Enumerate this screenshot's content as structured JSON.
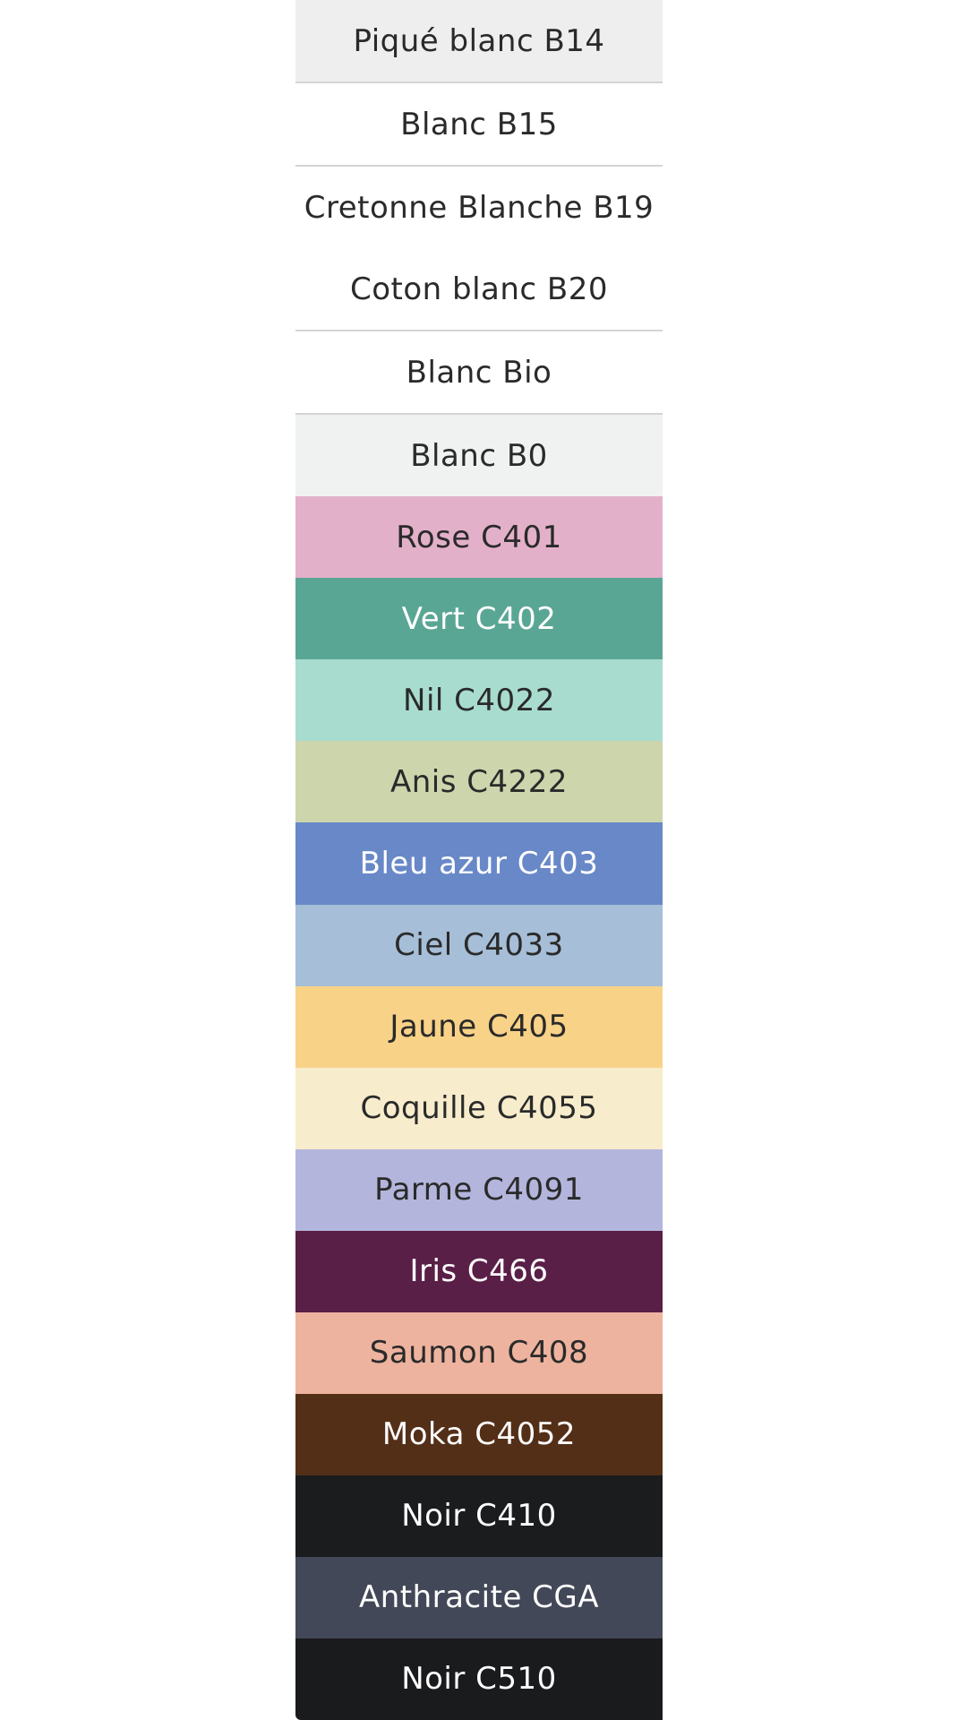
{
  "swatches": [
    {
      "label": "Piqué blanc B14",
      "color": "#eeeeee",
      "text_color": "#2a2a2a",
      "separator": true
    },
    {
      "label": "Blanc B15",
      "color": "#ffffff",
      "text_color": "#2a2a2a",
      "separator": true
    },
    {
      "label": "Cretonne Blanche B19",
      "color": "#ffffff",
      "text_color": "#2a2a2a",
      "separator": false
    },
    {
      "label": "Coton blanc B20",
      "color": "#ffffff",
      "text_color": "#2a2a2a",
      "separator": true
    },
    {
      "label": "Blanc Bio",
      "color": "#ffffff",
      "text_color": "#2a2a2a",
      "separator": true
    },
    {
      "label": "Blanc B0",
      "color": "#eff2f1",
      "text_color": "#2a2a2a",
      "separator": false
    },
    {
      "label": "Rose C401",
      "color": "#e3b0c9",
      "text_color": "#2a2a2a",
      "separator": false
    },
    {
      "label": "Vert C402",
      "color": "#5aa694",
      "text_color": "#ffffff",
      "separator": false
    },
    {
      "label": "Nil C4022",
      "color": "#a8dccf",
      "text_color": "#2a2a2a",
      "separator": false
    },
    {
      "label": "Anis C4222",
      "color": "#cdd5ad",
      "text_color": "#2a2a2a",
      "separator": false
    },
    {
      "label": "Bleu azur C403",
      "color": "#6888c8",
      "text_color": "#ffffff",
      "separator": false
    },
    {
      "label": "Ciel C4033",
      "color": "#a6bed7",
      "text_color": "#2a2a2a",
      "separator": false
    },
    {
      "label": "Jaune C405",
      "color": "#f8d287",
      "text_color": "#2a2a2a",
      "separator": false
    },
    {
      "label": "Coquille C4055",
      "color": "#f7eccc",
      "text_color": "#2a2a2a",
      "separator": false
    },
    {
      "label": "Parme C4091",
      "color": "#b3b5dc",
      "text_color": "#2a2a2a",
      "separator": false
    },
    {
      "label": "Iris C466",
      "color": "#5a1f47",
      "text_color": "#ffffff",
      "separator": false
    },
    {
      "label": "Saumon C408",
      "color": "#eeb39f",
      "text_color": "#2a2a2a",
      "separator": false
    },
    {
      "label": "Moka C4052",
      "color": "#542f18",
      "text_color": "#ffffff",
      "separator": false
    },
    {
      "label": "Noir C410",
      "color": "#1b1c1e",
      "text_color": "#ffffff",
      "separator": false
    },
    {
      "label": "Anthracite CGA",
      "color": "#434858",
      "text_color": "#ffffff",
      "separator": false
    },
    {
      "label": "Noir C510",
      "color": "#1a1b1d",
      "text_color": "#ffffff",
      "separator": false
    }
  ]
}
